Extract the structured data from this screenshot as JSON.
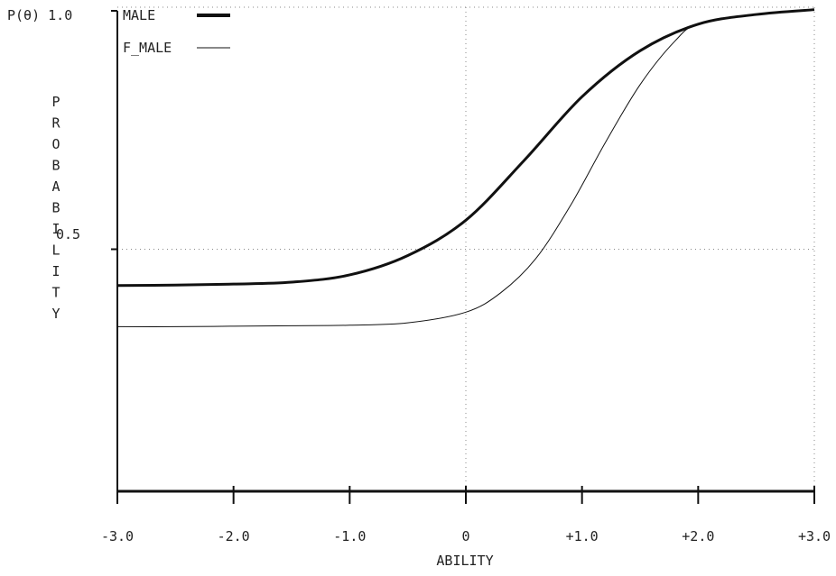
{
  "chart_data": {
    "type": "line",
    "title": "",
    "xlabel": "ABILITY",
    "ylabel": "PROBABILITY",
    "y_top_label": "P(θ) 1.0",
    "y_mid_label": "0.5",
    "xlim": [
      -3,
      3
    ],
    "ylim": [
      0,
      1
    ],
    "x_tick_labels": [
      "-3.0",
      "-2.0",
      "-1.0",
      "0",
      "+1.0",
      "+2.0",
      "+3.0"
    ],
    "x_ticks": [
      -3,
      -2,
      -1,
      0,
      1,
      2,
      3
    ],
    "grid": "dotted",
    "legend_position": "top-left",
    "series": [
      {
        "name": "MALE",
        "stroke_width": 3,
        "x": [
          -3.0,
          -2.5,
          -2.0,
          -1.5,
          -1.0,
          -0.5,
          0.0,
          0.5,
          1.0,
          1.5,
          2.0,
          2.5,
          3.0
        ],
        "y": [
          0.425,
          0.426,
          0.428,
          0.432,
          0.447,
          0.487,
          0.56,
          0.683,
          0.815,
          0.91,
          0.965,
          0.985,
          0.995
        ]
      },
      {
        "name": "F_MALE",
        "stroke_width": 1,
        "x": [
          -3.0,
          -2.5,
          -2.0,
          -1.5,
          -1.0,
          -0.5,
          0.0,
          0.3,
          0.6,
          0.9,
          1.2,
          1.5,
          1.8,
          2.0,
          2.5,
          3.0
        ],
        "y": [
          0.34,
          0.34,
          0.341,
          0.342,
          0.343,
          0.348,
          0.37,
          0.41,
          0.48,
          0.59,
          0.72,
          0.84,
          0.93,
          0.965,
          0.985,
          0.995
        ]
      }
    ]
  }
}
